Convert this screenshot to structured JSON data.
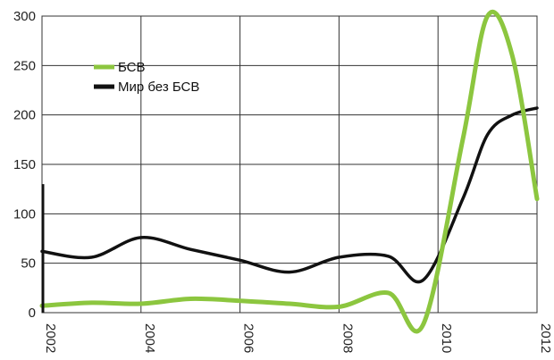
{
  "chart_data": {
    "type": "line",
    "x": [
      2002,
      2003,
      2004,
      2005,
      2006,
      2007,
      2008,
      2009,
      2009.7,
      2010.5,
      2011,
      2011.5,
      2012
    ],
    "xlim": [
      2002,
      2012
    ],
    "ylim": [
      0,
      300
    ],
    "x_ticks": [
      "2002",
      "2004",
      "2006",
      "2008",
      "2010",
      "2012"
    ],
    "y_ticks": [
      "0",
      "50",
      "100",
      "150",
      "200",
      "250",
      "300"
    ],
    "grid": true,
    "legend_position": "top-left",
    "series": [
      {
        "name": "БСВ",
        "color": "#8cc63f",
        "values": [
          7,
          10,
          9,
          14,
          12,
          9,
          6,
          20,
          -12,
          175,
          300,
          260,
          115
        ]
      },
      {
        "name": "Мир без БСВ",
        "color": "#111111",
        "values": [
          62,
          56,
          76,
          64,
          53,
          41,
          56,
          57,
          33,
          115,
          180,
          200,
          207
        ]
      }
    ],
    "annotation_bar": {
      "x": 2002,
      "from": 0,
      "to": 130
    }
  }
}
